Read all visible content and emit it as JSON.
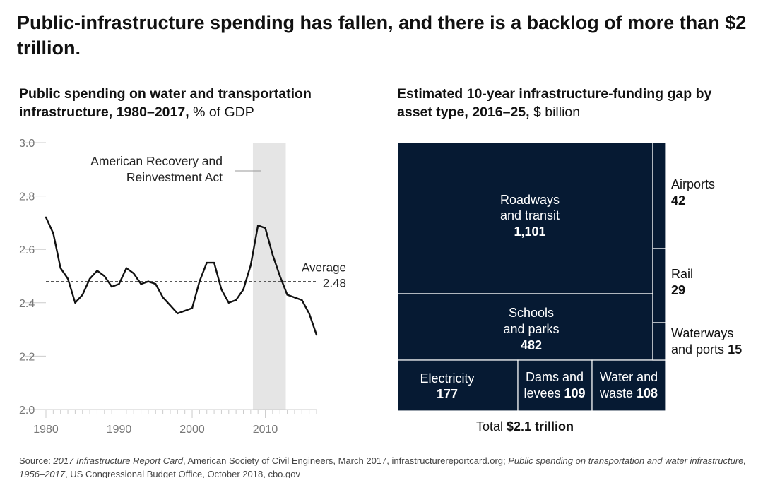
{
  "title": "Public-infrastructure spending has fallen, and there is a backlog of more than $2 trillion.",
  "chart_data": [
    {
      "type": "line",
      "title_bold": "Public spending on water and transportation infrastructure, 1980–2017,",
      "title_unit": "% of GDP",
      "xlim": [
        1980,
        2017
      ],
      "ylim": [
        2.0,
        3.0
      ],
      "x_ticks": [
        1980,
        1990,
        2000,
        2010
      ],
      "y_ticks": [
        "3.0",
        "2.8",
        "2.6",
        "2.4",
        "2.2",
        "2.0"
      ],
      "x": [
        1980,
        1981,
        1982,
        1983,
        1984,
        1985,
        1986,
        1987,
        1988,
        1989,
        1990,
        1991,
        1992,
        1993,
        1994,
        1995,
        1996,
        1997,
        1998,
        1999,
        2000,
        2001,
        2002,
        2003,
        2004,
        2005,
        2006,
        2007,
        2008,
        2009,
        2010,
        2011,
        2012,
        2013,
        2014,
        2015,
        2016,
        2017
      ],
      "y": [
        2.72,
        2.66,
        2.53,
        2.49,
        2.4,
        2.43,
        2.49,
        2.52,
        2.5,
        2.46,
        2.47,
        2.53,
        2.51,
        2.47,
        2.48,
        2.47,
        2.42,
        2.39,
        2.36,
        2.37,
        2.38,
        2.48,
        2.55,
        2.55,
        2.45,
        2.4,
        2.41,
        2.45,
        2.54,
        2.69,
        2.68,
        2.58,
        2.5,
        2.43,
        2.42,
        2.41,
        2.36,
        2.28
      ],
      "average": 2.48,
      "average_label": "Average",
      "average_value_label": "2.48",
      "shaded_range": [
        2008.3,
        2012.8
      ],
      "shaded_annotation_line1": "American Recovery and",
      "shaded_annotation_line2": "Reinvestment Act",
      "colors": {
        "line": "#111111",
        "shade": "#e5e5e5",
        "axis": "#cccccc",
        "tick": "#777777"
      }
    },
    {
      "type": "treemap",
      "title_bold": "Estimated 10-year infrastructure-funding gap by asset type, 2016–25,",
      "title_unit": "$ billion",
      "cells": [
        {
          "line1": "Roadways",
          "line2": "and transit",
          "value": "1,101"
        },
        {
          "line1": "Schools",
          "line2": "and parks",
          "value": "482"
        },
        {
          "line1": "Electricity",
          "value": "177"
        },
        {
          "line1": "Dams and",
          "line2": "levees",
          "value": "109"
        },
        {
          "line1": "Water and",
          "line2": "waste",
          "value": "108"
        },
        {
          "line1": "Airports",
          "value": "42"
        },
        {
          "line1": "Rail",
          "value": "29"
        },
        {
          "line1": "Waterways",
          "line2": "and ports",
          "value": "15"
        }
      ],
      "total_label": "Total",
      "total_value": "$2.1 trillion",
      "colors": {
        "fill": "#061a33",
        "border": "#ffffff",
        "text": "#ffffff"
      }
    }
  ],
  "source": {
    "prefix": "Source: ",
    "italic1": "2017 Infrastructure Report Card",
    "text1": ", American Society of Civil Engineers, March 2017, infrastructurereportcard.org; ",
    "italic2": "Public spending on transportation and water infrastructure, 1956–2017",
    "text2": ", US Congressional Budget Office, October 2018, cbo.gov"
  }
}
